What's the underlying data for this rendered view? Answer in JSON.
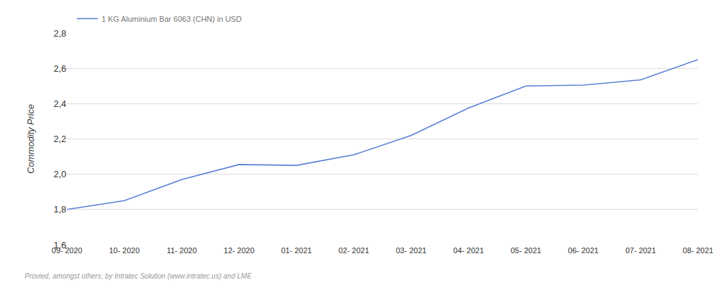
{
  "chart_data": {
    "type": "line",
    "y_label": "Commodity Price",
    "categories": [
      "09- 2020",
      "10- 2020",
      "11- 2020",
      "12- 2020",
      "01- 2021",
      "02- 2021",
      "03- 2021",
      "04- 2021",
      "05- 2021",
      "06- 2021",
      "07- 2021",
      "08- 2021"
    ],
    "series": [
      {
        "name": "1 KG Aluminium Bar 6063 (CHN) in USD",
        "color": "#5b7fd6",
        "values": [
          1.8,
          1.85,
          1.97,
          2.055,
          2.05,
          2.11,
          2.22,
          2.375,
          2.5,
          2.505,
          2.535,
          2.65
        ]
      }
    ],
    "ylim": [
      1.6,
      2.8
    ],
    "yticks": [
      {
        "value": 1.6,
        "label": "1,6"
      },
      {
        "value": 1.8,
        "label": "1,8"
      },
      {
        "value": 2.0,
        "label": "2,0"
      },
      {
        "value": 2.2,
        "label": "2,2"
      },
      {
        "value": 2.4,
        "label": "2,4"
      },
      {
        "value": 2.6,
        "label": "2,6"
      },
      {
        "value": 2.8,
        "label": "2,8"
      }
    ],
    "grid": true,
    "legend": "top-left",
    "annotations": [
      "Provied, amongst others, by Intratec Solution (www.intratec.us) and LME"
    ]
  }
}
